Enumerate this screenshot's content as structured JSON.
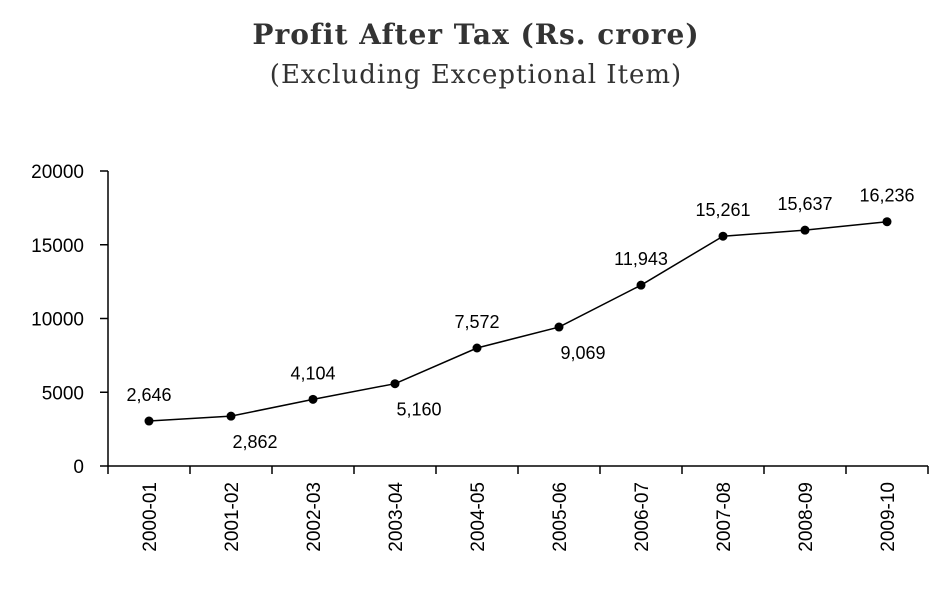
{
  "chart_data": {
    "type": "line",
    "title": "Profit After Tax (Rs. crore)",
    "subtitle": "(Excluding Exceptional Item)",
    "xlabel": "",
    "ylabel": "",
    "categories": [
      "2000-01",
      "2001-02",
      "2002-03",
      "2003-04",
      "2004-05",
      "2005-06",
      "2006-07",
      "2007-08",
      "2008-09",
      "2009-10"
    ],
    "y_plot_values": [
      3050,
      3380,
      4520,
      5580,
      8000,
      9420,
      12260,
      15580,
      15990,
      16560
    ],
    "data_labels": [
      "2,646",
      "2,862",
      "4,104",
      "5,160",
      "7,572",
      "9,069",
      "11,943",
      "15,261",
      "15,637",
      "16,236"
    ],
    "label_positions": [
      "above",
      "below",
      "above",
      "below",
      "above",
      "below",
      "above",
      "above",
      "above",
      "above"
    ],
    "y_ticks": [
      "0",
      "5000",
      "10000",
      "15000",
      "20000"
    ],
    "ylim": [
      0,
      20000
    ],
    "grid": false,
    "legend": "none",
    "line_color": "#000000",
    "marker": "filled-circle"
  }
}
